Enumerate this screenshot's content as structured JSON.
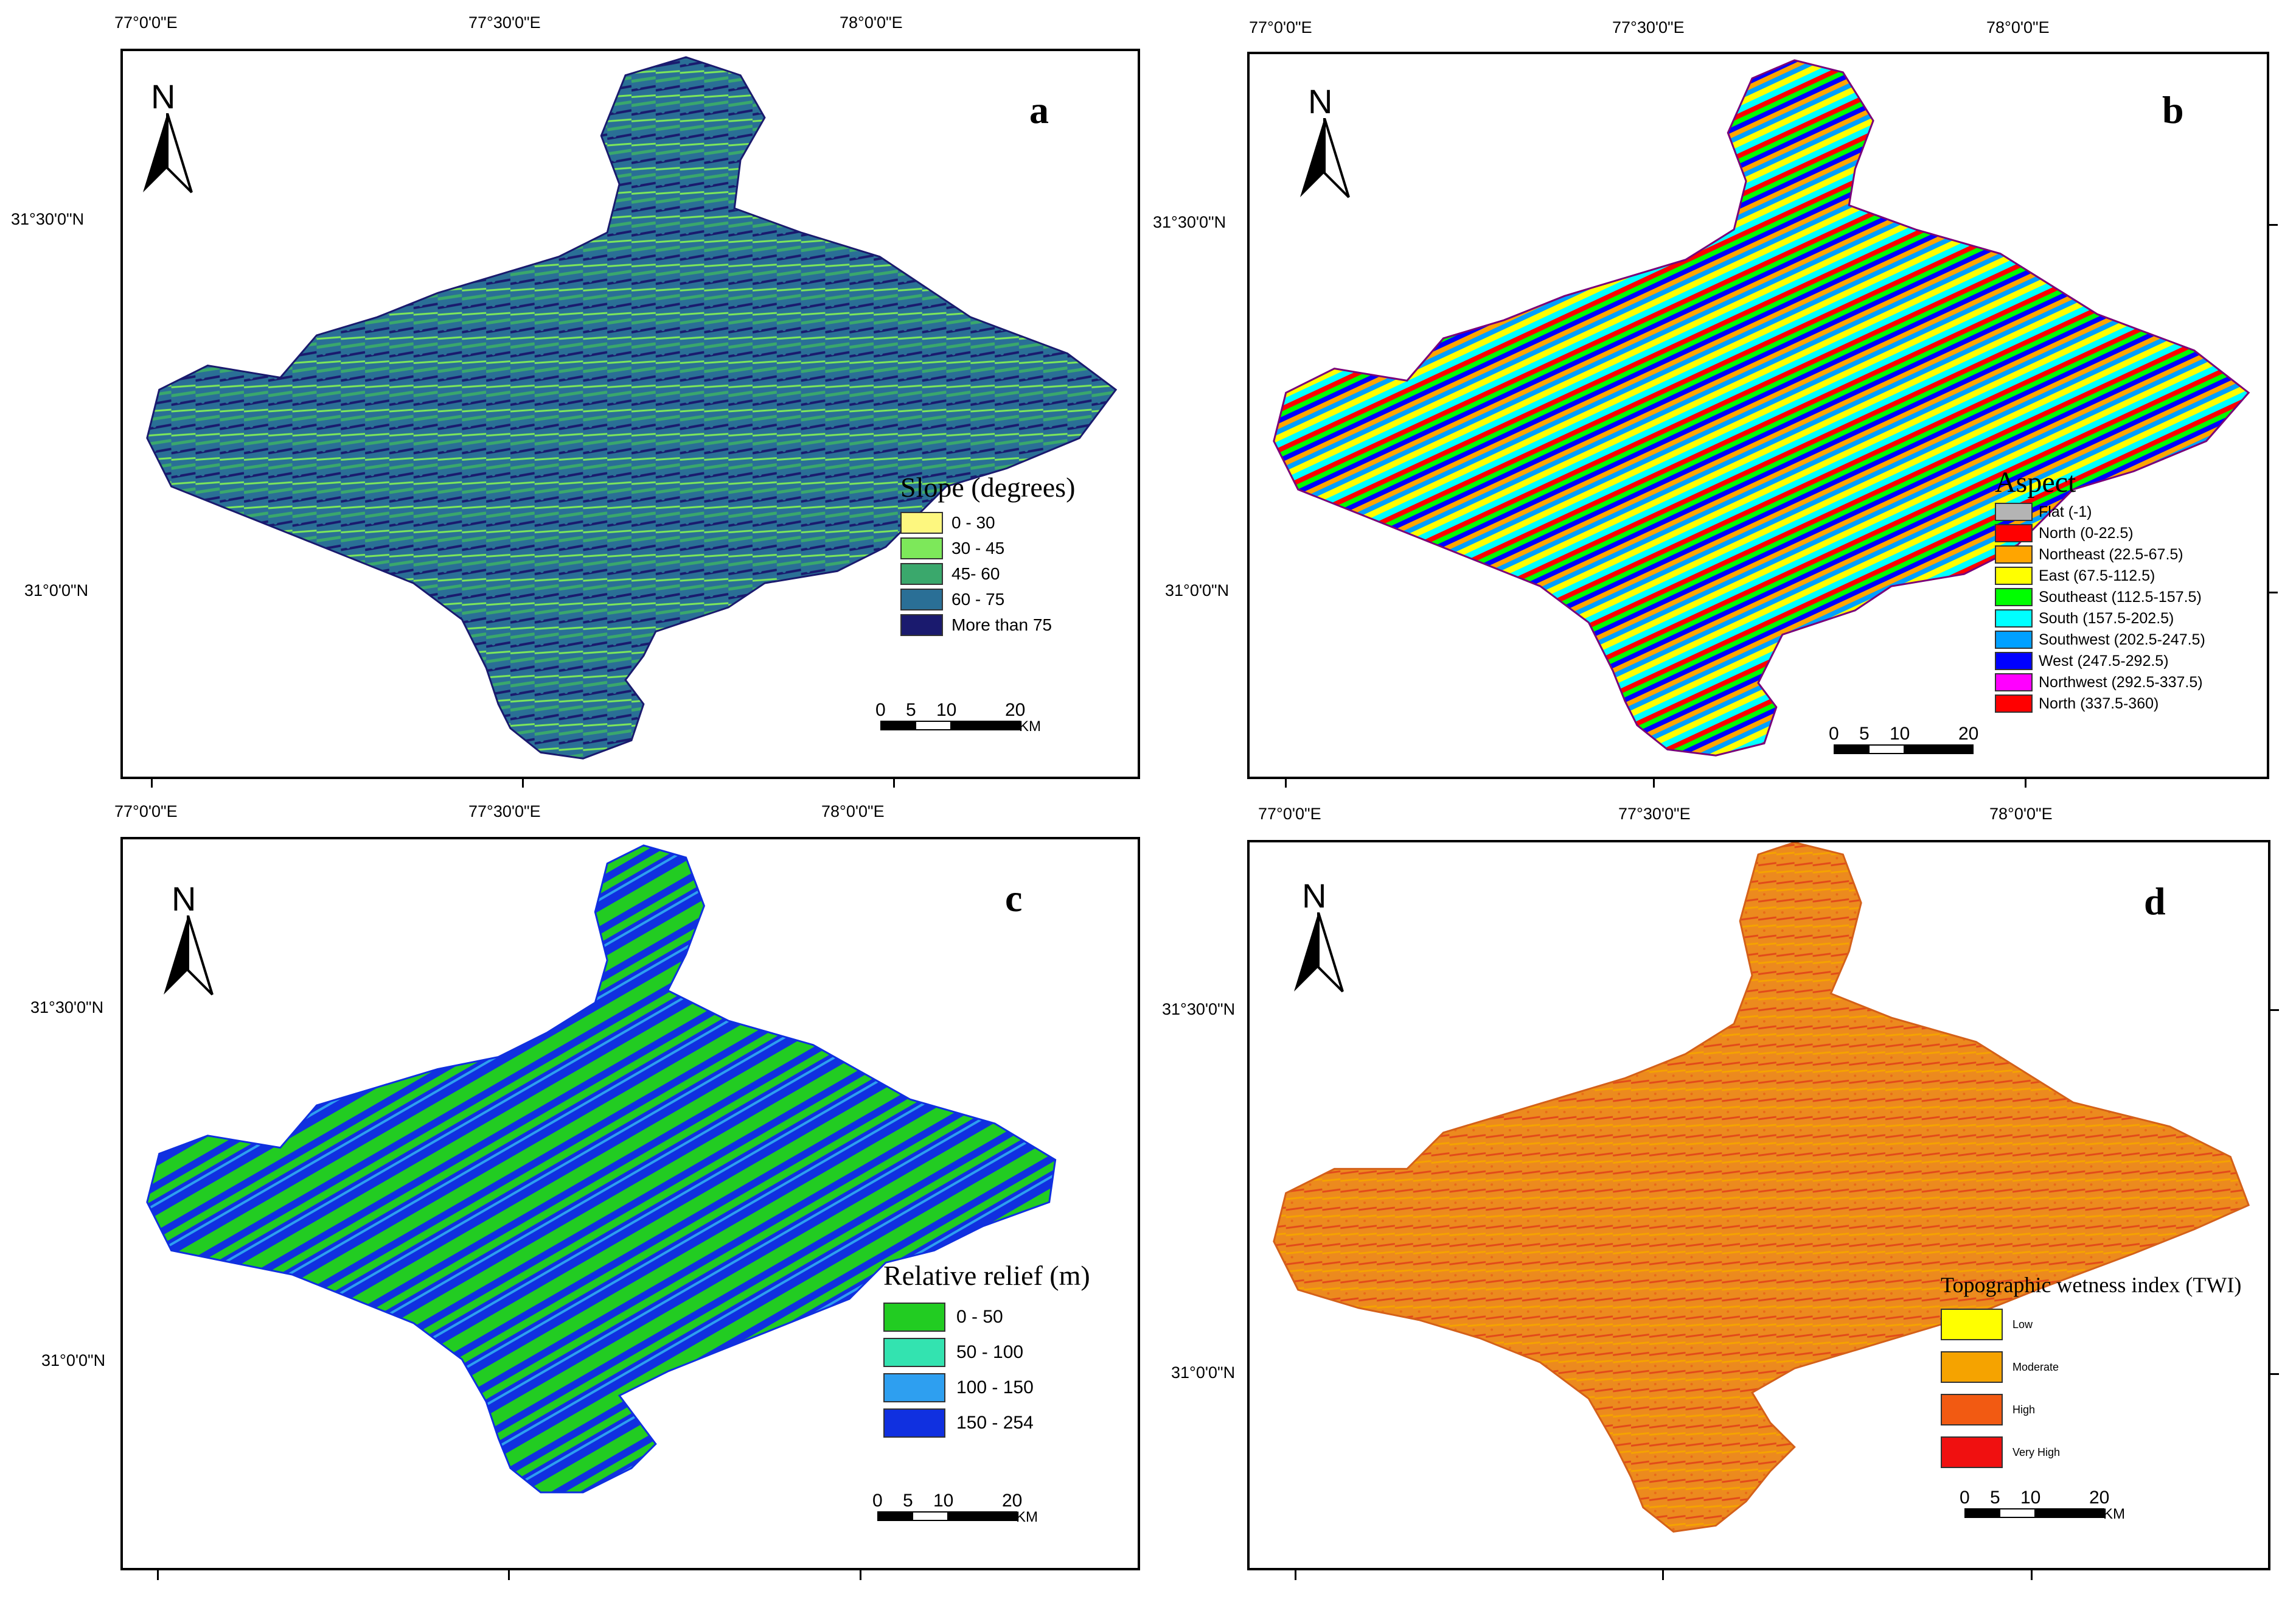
{
  "panels": {
    "a": {
      "letter": "a",
      "lon_labels": [
        "77°0'0\"E",
        "77°30'0\"E",
        "78°0'0\"E"
      ],
      "lat_labels": [
        "31°30'0\"N",
        "31°0'0\"N"
      ],
      "north_label": "N",
      "legend": {
        "title": "Slope (degrees)",
        "items": [
          {
            "label": "0 - 30",
            "color": "#fdf77f"
          },
          {
            "label": "30 - 45",
            "color": "#7de85a"
          },
          {
            "label": "45- 60",
            "color": "#3aa86c"
          },
          {
            "label": "60 - 75",
            "color": "#2a6f96"
          },
          {
            "label": "More than 75",
            "color": "#1a1a6e"
          }
        ]
      },
      "scale": {
        "ticks": [
          "0",
          "5",
          "10",
          "20"
        ],
        "unit": "KM"
      },
      "map_colors": [
        "#2a6f96",
        "#3aa86c",
        "#1a1a6e",
        "#7de85a",
        "#2a6f96"
      ]
    },
    "b": {
      "letter": "b",
      "lon_labels": [
        "77°0'0\"E",
        "77°30'0\"E",
        "78°0'0\"E"
      ],
      "lat_labels": [
        "31°30'0\"N",
        "31°0'0\"N"
      ],
      "north_label": "N",
      "legend": {
        "title": "Aspect",
        "items": [
          {
            "label": "Flat (-1)",
            "color": "#b4b4b4"
          },
          {
            "label": "North (0-22.5)",
            "color": "#ff0000"
          },
          {
            "label": "Northeast (22.5-67.5)",
            "color": "#ffa500"
          },
          {
            "label": "East (67.5-112.5)",
            "color": "#ffff00"
          },
          {
            "label": "Southeast (112.5-157.5)",
            "color": "#00ff00"
          },
          {
            "label": "South (157.5-202.5)",
            "color": "#00ffff"
          },
          {
            "label": "Southwest (202.5-247.5)",
            "color": "#00a0ff"
          },
          {
            "label": "West (247.5-292.5)",
            "color": "#0000ff"
          },
          {
            "label": "Northwest (292.5-337.5)",
            "color": "#ff00ff"
          },
          {
            "label": "North (337.5-360)",
            "color": "#ff0000"
          }
        ]
      },
      "scale": {
        "ticks": [
          "0",
          "5",
          "10",
          "20"
        ],
        "unit": "KM"
      },
      "map_colors": [
        "#ff00ff",
        "#00ffff",
        "#ff0000",
        "#00ff00",
        "#0000ff",
        "#ffa500",
        "#00a0ff",
        "#ffff00"
      ]
    },
    "c": {
      "letter": "c",
      "lon_labels": [
        "77°0'0\"E",
        "77°30'0\"E",
        "78°0'0\"E"
      ],
      "lat_labels": [
        "31°30'0\"N",
        "31°0'0\"N"
      ],
      "north_label": "N",
      "legend": {
        "title": "Relative relief (m)",
        "items": [
          {
            "label": "0 - 50",
            "color": "#22cc22"
          },
          {
            "label": "50 - 100",
            "color": "#33e3b0"
          },
          {
            "label": "100 - 150",
            "color": "#2e9ff0"
          },
          {
            "label": "150 - 254",
            "color": "#1030e0"
          }
        ]
      },
      "scale": {
        "ticks": [
          "0",
          "5",
          "10",
          "20"
        ],
        "unit": "KM"
      },
      "map_colors": [
        "#1030e0",
        "#22cc22",
        "#1030e0",
        "#2e9ff0"
      ]
    },
    "d": {
      "letter": "d",
      "lon_labels": [
        "77°0'0\"E",
        "77°30'0\"E",
        "78°0'0\"E"
      ],
      "lat_labels": [
        "31°30'0\"N",
        "31°0'0\"N"
      ],
      "north_label": "N",
      "legend": {
        "title": "Topographic wetness index (TWI)",
        "items": [
          {
            "label": "Low",
            "color": "#ffff00"
          },
          {
            "label": "Moderate",
            "color": "#f5a300"
          },
          {
            "label": "High",
            "color": "#f25a12"
          },
          {
            "label": "Very High",
            "color": "#f01010"
          }
        ]
      },
      "scale": {
        "ticks": [
          "0",
          "5",
          "10",
          "20"
        ],
        "unit": "KM"
      },
      "map_colors": [
        "#ec8a1e",
        "#e24a1a",
        "#f5a300",
        "#e86a18"
      ]
    }
  }
}
